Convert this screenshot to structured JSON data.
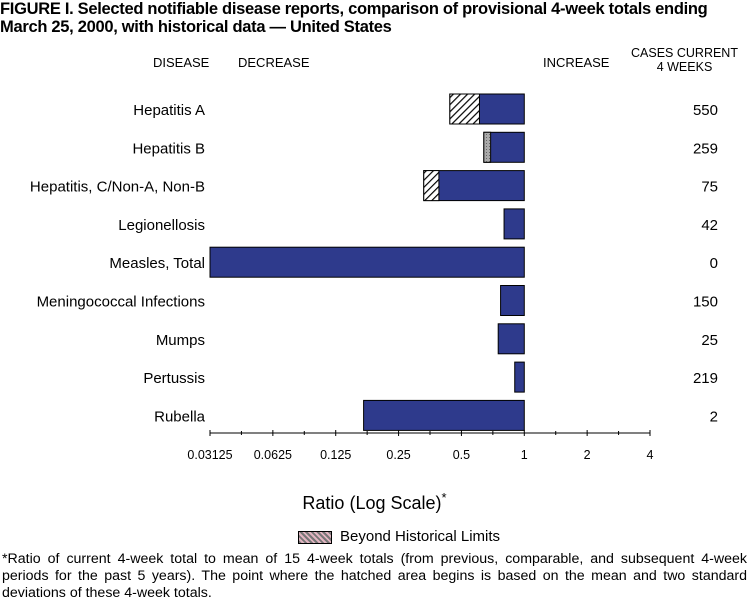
{
  "title": "FIGURE I. Selected notifiable disease reports, comparison of provisional 4-week totals ending March 25, 2000, with historical data — United States",
  "headers": {
    "disease": "DISEASE",
    "decrease": "DECREASE",
    "increase": "INCREASE",
    "cases_line1": "CASES CURRENT",
    "cases_line2": "4 WEEKS"
  },
  "axis_label": "Ratio (Log Scale)",
  "axis_label_mark": "*",
  "legend_label": "Beyond Historical Limits",
  "footnote": "*Ratio of current 4-week total to mean of 15 4-week totals (from previous, comparable, and subsequent 4-week periods for the past 5 years). The point where the hatched area begins is based on the mean and two standard deviations of these 4-week totals.",
  "colors": {
    "bar": "#2e3a8c",
    "hatch_bg": "#ffffff",
    "hatch_line": "#000000",
    "beyond_limits_gray": "#999999",
    "legend_pink": "#e0b4c0"
  },
  "chart_data": {
    "type": "bar",
    "orientation": "horizontal",
    "scale": "log2",
    "xlim": [
      0.03125,
      4
    ],
    "baseline": 1,
    "xticks": [
      "0.03125",
      "0.0625",
      "0.125",
      "0.25",
      "0.5",
      "1",
      "2",
      "4"
    ],
    "xtick_values": [
      0.03125,
      0.0625,
      0.125,
      0.25,
      0.5,
      1,
      2,
      4
    ],
    "categories": [
      "Hepatitis A",
      "Hepatitis B",
      "Hepatitis, C/Non-A, Non-B",
      "Legionellosis",
      "Measles, Total",
      "Meningococcal Infections",
      "Mumps",
      "Pertussis",
      "Rubella"
    ],
    "ratios": [
      0.44,
      0.64,
      0.33,
      0.8,
      0.03125,
      0.77,
      0.75,
      0.9,
      0.17
    ],
    "beyond_limits_start": [
      0.61,
      0.69,
      0.39,
      null,
      null,
      null,
      null,
      null,
      null
    ],
    "beyond_limits_style": [
      "hatch",
      "gray",
      "hatch",
      null,
      null,
      null,
      null,
      null,
      null
    ],
    "cases_current_4_weeks": [
      "550",
      "259",
      "75",
      "42",
      "0",
      "150",
      "25",
      "219",
      "2"
    ]
  }
}
